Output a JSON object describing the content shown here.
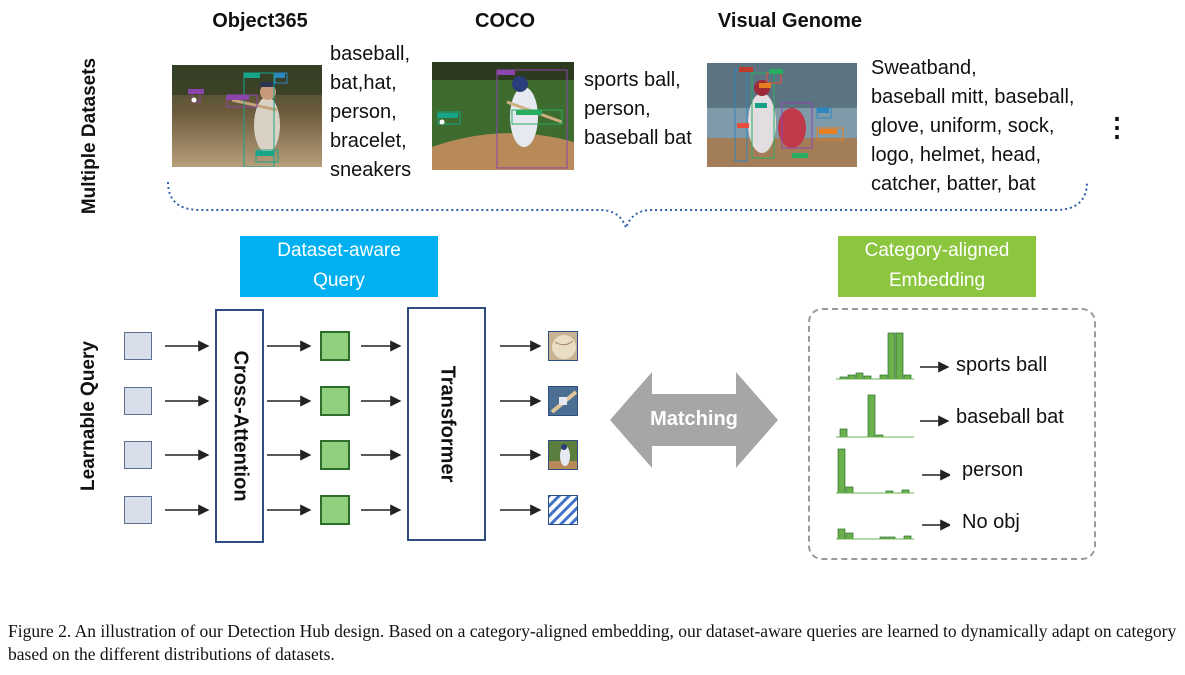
{
  "side_labels": {
    "multiple_datasets": "Multiple Datasets",
    "learnable_query": "Learnable Query"
  },
  "datasets": [
    {
      "title": "Object365",
      "categories": [
        "baseball,",
        "bat,hat,",
        "person,",
        "bracelet,",
        "sneakers"
      ],
      "box_labels": [
        "person",
        "hat",
        "baseball",
        "baseball bat",
        "bracelet",
        "sneakers"
      ]
    },
    {
      "title": "COCO",
      "categories": [
        "sports ball,",
        "person,",
        "baseball bat"
      ],
      "box_labels": [
        "person",
        "sports ball",
        "baseball bat"
      ]
    },
    {
      "title": "Visual Genome",
      "categories": [
        "Sweatband,",
        "baseball mitt, baseball,",
        "glove, uniform, sock,",
        "logo, helmet, head,",
        "catcher, batter, bat"
      ],
      "box_labels": [
        "batter",
        "helmet",
        "uniform",
        "glove",
        "catcher",
        "logo",
        "sock",
        "head"
      ]
    }
  ],
  "ellipsis": "⋮",
  "dataset_aware_query": {
    "line1": "Dataset-aware",
    "line2": "Query"
  },
  "category_aligned_embedding": {
    "line1": "Category-aligned",
    "line2": "Embedding"
  },
  "cross_attention": "Cross-Attention",
  "transformer": "Transformer",
  "matching": "Matching",
  "embedding_outputs": [
    "sports ball",
    "baseball bat",
    "person",
    "No obj"
  ],
  "colors": {
    "query_blue": "#00b0f0",
    "embedding_green": "#8cc63f",
    "box_border": "#2f4d7e",
    "green_square": "#8fcf7e",
    "matching_arrow": "#a6a6a6",
    "histogram_bar": "#6ab04c"
  },
  "caption": "Figure 2. An illustration of our Detection Hub design. Based on a category-aligned embedding, our dataset-aware queries are learned to dynamically adapt on category based on the different distributions of datasets."
}
